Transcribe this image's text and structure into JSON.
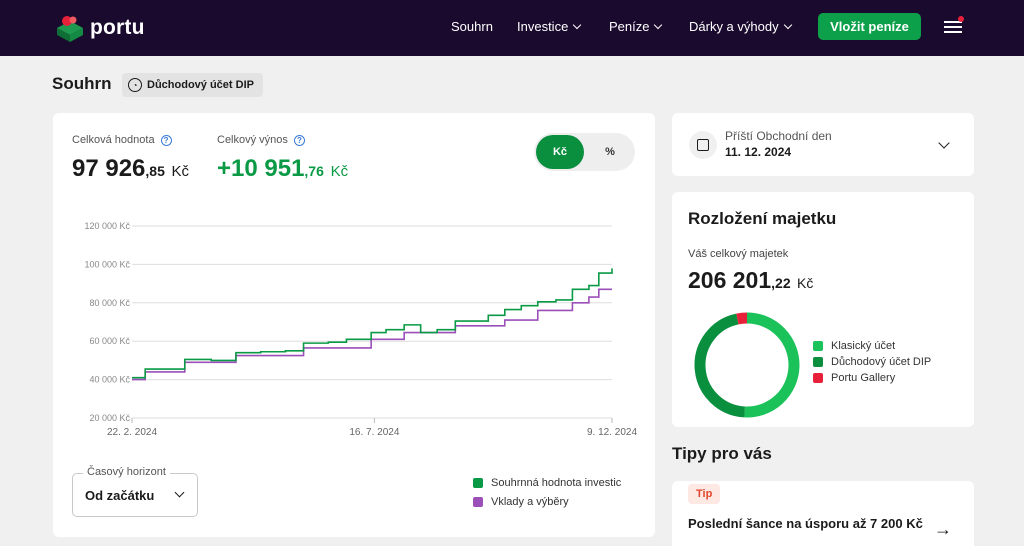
{
  "brand": {
    "name": "portu"
  },
  "nav": {
    "items": [
      {
        "label": "Souhrn"
      },
      {
        "label": "Investice"
      },
      {
        "label": "Peníze"
      },
      {
        "label": "Dárky a výhody"
      }
    ],
    "cta_label": "Vložit peníze"
  },
  "page": {
    "title": "Souhrn",
    "account_badge": "Důchodový účet DIP"
  },
  "summary": {
    "total_value_label": "Celková hodnota",
    "total_value_int": "97 926",
    "total_value_dec": ",85",
    "currency": "Kč",
    "total_return_label": "Celkový výnos",
    "total_return_int": "+10 951",
    "total_return_dec": ",76",
    "toggle_currency": "Kč",
    "toggle_percent": "%"
  },
  "chart_data": {
    "type": "line",
    "y_ticks": [
      "120 000 Kč",
      "100 000 Kč",
      "80 000 Kč",
      "60 000 Kč",
      "40 000 Kč",
      "20 000 Kč"
    ],
    "ylim": [
      20000,
      120000
    ],
    "x_ticks": [
      "22. 2. 2024",
      "16. 7. 2024",
      "9. 12. 2024"
    ],
    "series": [
      {
        "name": "Souhrnná hodnota investic",
        "color": "#0a9a45",
        "x": [
          "2024-02-22",
          "2024-03-01",
          "2024-03-15",
          "2024-03-25",
          "2024-04-10",
          "2024-04-25",
          "2024-05-10",
          "2024-05-25",
          "2024-06-05",
          "2024-06-20",
          "2024-07-01",
          "2024-07-16",
          "2024-07-25",
          "2024-08-05",
          "2024-08-15",
          "2024-08-25",
          "2024-09-05",
          "2024-09-15",
          "2024-09-25",
          "2024-10-05",
          "2024-10-15",
          "2024-10-25",
          "2024-11-05",
          "2024-11-15",
          "2024-11-25",
          "2024-12-01",
          "2024-12-09"
        ],
        "values": [
          41000,
          45500,
          45500,
          50500,
          50000,
          54000,
          54500,
          55000,
          59000,
          59500,
          61000,
          64500,
          66000,
          68500,
          64500,
          66000,
          70500,
          70500,
          73500,
          76500,
          78500,
          80500,
          81500,
          87000,
          89000,
          95500,
          97900
        ]
      },
      {
        "name": "Vklady a výběry",
        "color": "#9b4fb8",
        "x": [
          "2024-02-22",
          "2024-03-01",
          "2024-03-15",
          "2024-03-25",
          "2024-04-10",
          "2024-04-25",
          "2024-05-10",
          "2024-05-25",
          "2024-06-05",
          "2024-06-20",
          "2024-07-01",
          "2024-07-16",
          "2024-07-25",
          "2024-08-05",
          "2024-08-15",
          "2024-08-25",
          "2024-09-05",
          "2024-09-15",
          "2024-09-25",
          "2024-10-05",
          "2024-10-15",
          "2024-10-25",
          "2024-11-05",
          "2024-11-15",
          "2024-11-25",
          "2024-12-01",
          "2024-12-09"
        ],
        "values": [
          40000,
          44000,
          44000,
          49000,
          49000,
          52500,
          52500,
          52500,
          56500,
          56500,
          56500,
          61000,
          61000,
          64500,
          64500,
          64500,
          68000,
          68000,
          68000,
          71000,
          71000,
          76000,
          76000,
          80000,
          83000,
          87000,
          87000
        ]
      }
    ]
  },
  "horizon": {
    "label": "Časový horizont",
    "value": "Od začátku"
  },
  "next_trading": {
    "label": "Příští Obchodní den",
    "date": "11. 12. 2024"
  },
  "assets": {
    "title": "Rozložení majetku",
    "total_label": "Váš celkový majetek",
    "total_int": "206 201",
    "total_dec": ",22",
    "currency": "Kč",
    "segments": [
      {
        "name": "Klasický účet",
        "value": 108300,
        "color": "#1bc25a"
      },
      {
        "name": "Důchodový účet DIP",
        "value": 97900,
        "color": "#0a8f3f"
      },
      {
        "name": "Portu Gallery",
        "value": 7000,
        "color": "#e8213a"
      }
    ]
  },
  "tips": {
    "title": "Tipy pro vás",
    "badge": "Tip",
    "text": "Poslední šance na úsporu až 7 200 Kč"
  }
}
